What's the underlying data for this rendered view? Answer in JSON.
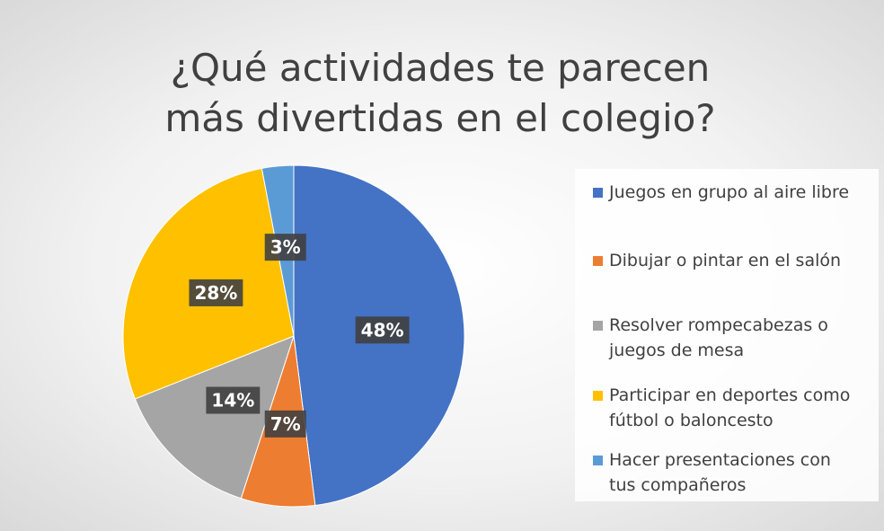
{
  "chart_data": {
    "type": "pie",
    "title": "¿Qué actividades te parecen más divertidas en el colegio?",
    "categories": [
      "Juegos en grupo al aire libre",
      "Dibujar o pintar en el salón",
      "Resolver rompecabezas o juegos de mesa",
      "Participar en deportes como fútbol o baloncesto",
      "Hacer presentaciones con tus compañeros"
    ],
    "values": [
      48,
      7,
      14,
      28,
      3
    ],
    "value_labels": [
      "48%",
      "7%",
      "14%",
      "28%",
      "3%"
    ],
    "colors": [
      "#4472c4",
      "#ed7d31",
      "#a5a5a5",
      "#ffc000",
      "#5b9bd5"
    ],
    "legend": "right"
  }
}
